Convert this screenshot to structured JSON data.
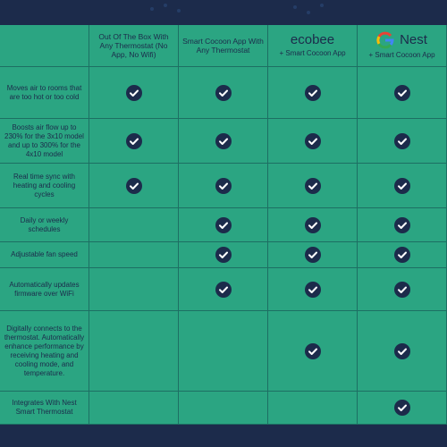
{
  "header": {
    "columns": [
      {
        "text": "Out Of The Box With Any Thermostat (No App, No Wifi)"
      },
      {
        "text": "Smart Cocoon App With Any Thermostat"
      },
      {
        "brand": "ecobee",
        "text": "+ Smart Cocoon App"
      },
      {
        "brand": "Nest",
        "text": "+ Smart Cocoon App"
      }
    ]
  },
  "table": {
    "rows": [
      {
        "label": "Moves air to rooms that are too hot or too cold",
        "checks": [
          true,
          true,
          true,
          true
        ]
      },
      {
        "label": "Boosts air flow up to 230% for the 3x10 model and up to 300% for the 4x10 model",
        "checks": [
          true,
          true,
          true,
          true
        ]
      },
      {
        "label": "Real time sync with heating and cooling cycles",
        "checks": [
          true,
          true,
          true,
          true
        ]
      },
      {
        "label": "Daily or weekly schedules",
        "checks": [
          false,
          true,
          true,
          true
        ]
      },
      {
        "label": "Adjustable fan speed",
        "checks": [
          false,
          true,
          true,
          true
        ]
      },
      {
        "label": "Automatically updates firmware over WiFi",
        "checks": [
          false,
          true,
          true,
          true
        ]
      },
      {
        "label": "Digitally connects to the thermostat. Automatically enhance performance by receiving heating and cooling mode, and temperature.",
        "checks": [
          false,
          false,
          true,
          true
        ]
      },
      {
        "label": "Integrates With Nest Smart Thermostat",
        "checks": [
          false,
          false,
          false,
          true
        ]
      }
    ]
  }
}
